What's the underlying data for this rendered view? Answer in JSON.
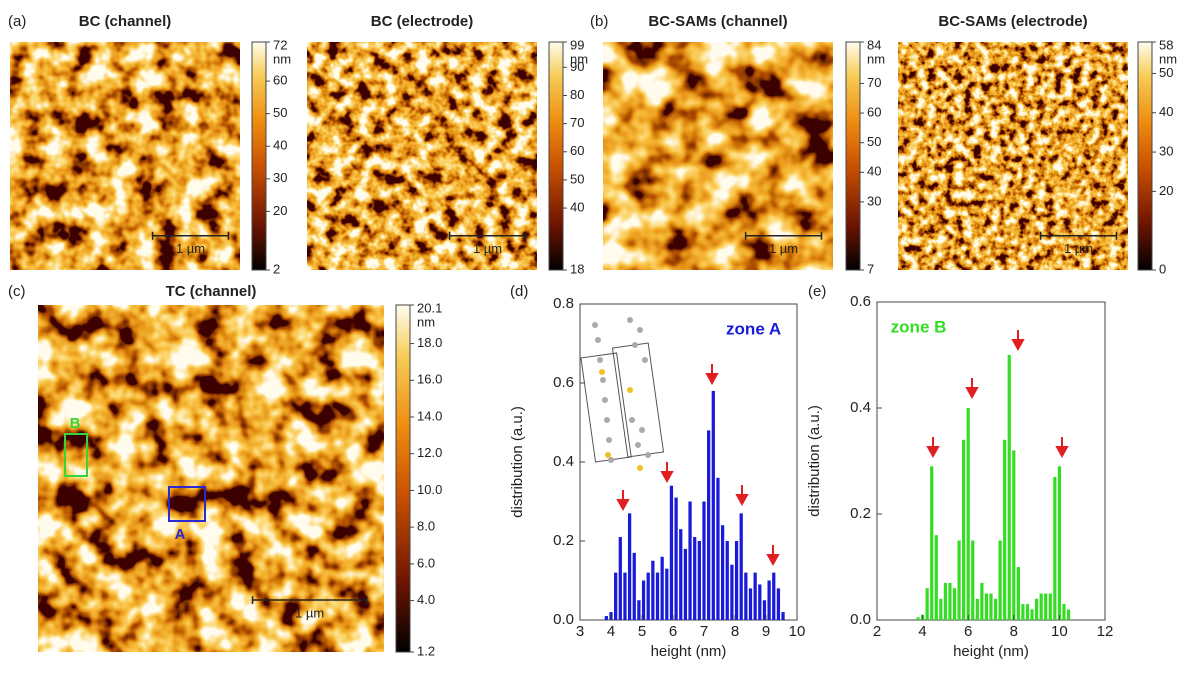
{
  "panel_labels": [
    "(a)",
    "(b)",
    "(c)"
  ],
  "images": [
    {
      "title": "BC (channel)",
      "scale_bar": "1 µm",
      "colorbar": {
        "unit": "nm",
        "lim": [
          2,
          72
        ],
        "ticks": [
          72,
          60,
          50,
          40,
          30,
          20,
          2
        ]
      }
    },
    {
      "title": "BC (electrode)",
      "scale_bar": "1 µm",
      "colorbar": {
        "unit": "nm",
        "lim": [
          18,
          99
        ],
        "ticks": [
          99,
          90,
          80,
          70,
          60,
          50,
          40,
          18
        ]
      }
    },
    {
      "title": "BC-SAMs (channel)",
      "scale_bar": "1 µm",
      "colorbar": {
        "unit": "nm",
        "lim": [
          7,
          84
        ],
        "ticks": [
          84,
          70,
          60,
          50,
          40,
          30,
          7
        ]
      }
    },
    {
      "title": "BC-SAMs (electrode)",
      "scale_bar": "1 µm",
      "colorbar": {
        "unit": "nm",
        "lim": [
          0,
          58
        ],
        "ticks": [
          58,
          50,
          40,
          30,
          20,
          0
        ]
      }
    },
    {
      "title": "TC (channel)",
      "scale_bar": "1 µm",
      "colorbar": {
        "unit": "nm",
        "lim": [
          1.2,
          20.1
        ],
        "ticks": [
          20.1,
          {
            "value": 18,
            "label": "18.0"
          },
          {
            "value": 16,
            "label": "16.0"
          },
          {
            "value": 14,
            "label": "14.0"
          },
          {
            "value": 12,
            "label": "12.0"
          },
          {
            "value": 10,
            "label": "10.0"
          },
          {
            "value": 8,
            "label": "8.0"
          },
          {
            "value": 6,
            "label": "6.0"
          },
          {
            "value": 4,
            "label": "4.0"
          },
          1.2
        ]
      }
    }
  ],
  "zones": [
    {
      "name": "A",
      "color": "#2a2ad0"
    },
    {
      "name": "B",
      "color": "#3ad43a"
    }
  ],
  "chart_data": [
    {
      "type": "bar",
      "panel_label": "(d)",
      "title": "zone A",
      "color": "#1a1adb",
      "x_label": "height (nm)",
      "y_label": "distribution (a.u.)",
      "x": [
        3.85,
        4.0,
        4.15,
        4.3,
        4.45,
        4.6,
        4.75,
        4.9,
        5.05,
        5.2,
        5.35,
        5.5,
        5.65,
        5.8,
        5.95,
        6.1,
        6.25,
        6.4,
        6.55,
        6.7,
        6.85,
        7.0,
        7.15,
        7.3,
        7.45,
        7.6,
        7.75,
        7.9,
        8.05,
        8.2,
        8.35,
        8.5,
        8.65,
        8.8,
        8.95,
        9.1,
        9.25,
        9.4,
        9.55
      ],
      "values": [
        0.01,
        0.02,
        0.12,
        0.21,
        0.12,
        0.27,
        0.17,
        0.05,
        0.1,
        0.12,
        0.15,
        0.12,
        0.16,
        0.13,
        0.34,
        0.31,
        0.23,
        0.18,
        0.3,
        0.21,
        0.2,
        0.3,
        0.48,
        0.58,
        0.36,
        0.24,
        0.2,
        0.14,
        0.2,
        0.27,
        0.12,
        0.08,
        0.12,
        0.09,
        0.05,
        0.1,
        0.12,
        0.08,
        0.02
      ],
      "xlim": [
        3,
        10
      ],
      "xticks": [
        3,
        4,
        5,
        6,
        7,
        8,
        9,
        10
      ],
      "ylim": [
        0,
        0.8
      ],
      "yticks": [
        {
          "value": 0,
          "label": "0.0"
        },
        0.2,
        0.4,
        0.6,
        0.8
      ]
    },
    {
      "type": "bar",
      "panel_label": "(e)",
      "title": "zone B",
      "color": "#33dd22",
      "x_label": "height (nm)",
      "y_label": "distribution (a.u.)",
      "x": [
        3.8,
        4.0,
        4.2,
        4.4,
        4.6,
        4.8,
        5.0,
        5.2,
        5.4,
        5.6,
        5.8,
        6.0,
        6.2,
        6.4,
        6.6,
        6.8,
        7.0,
        7.2,
        7.4,
        7.6,
        7.8,
        8.0,
        8.2,
        8.4,
        8.6,
        8.8,
        9.0,
        9.2,
        9.4,
        9.6,
        9.8,
        10.0,
        10.2,
        10.4
      ],
      "values": [
        0.005,
        0.01,
        0.06,
        0.29,
        0.16,
        0.04,
        0.07,
        0.07,
        0.06,
        0.15,
        0.34,
        0.4,
        0.15,
        0.04,
        0.07,
        0.05,
        0.05,
        0.04,
        0.15,
        0.34,
        0.5,
        0.32,
        0.1,
        0.03,
        0.03,
        0.02,
        0.04,
        0.05,
        0.05,
        0.05,
        0.27,
        0.29,
        0.03,
        0.02
      ],
      "xlim": [
        2,
        12
      ],
      "xticks": [
        2,
        4,
        6,
        8,
        10,
        12
      ],
      "ylim": [
        0,
        0.6
      ],
      "yticks": [
        {
          "value": 0,
          "label": "0.0"
        },
        0.2,
        0.4,
        0.6
      ]
    }
  ]
}
